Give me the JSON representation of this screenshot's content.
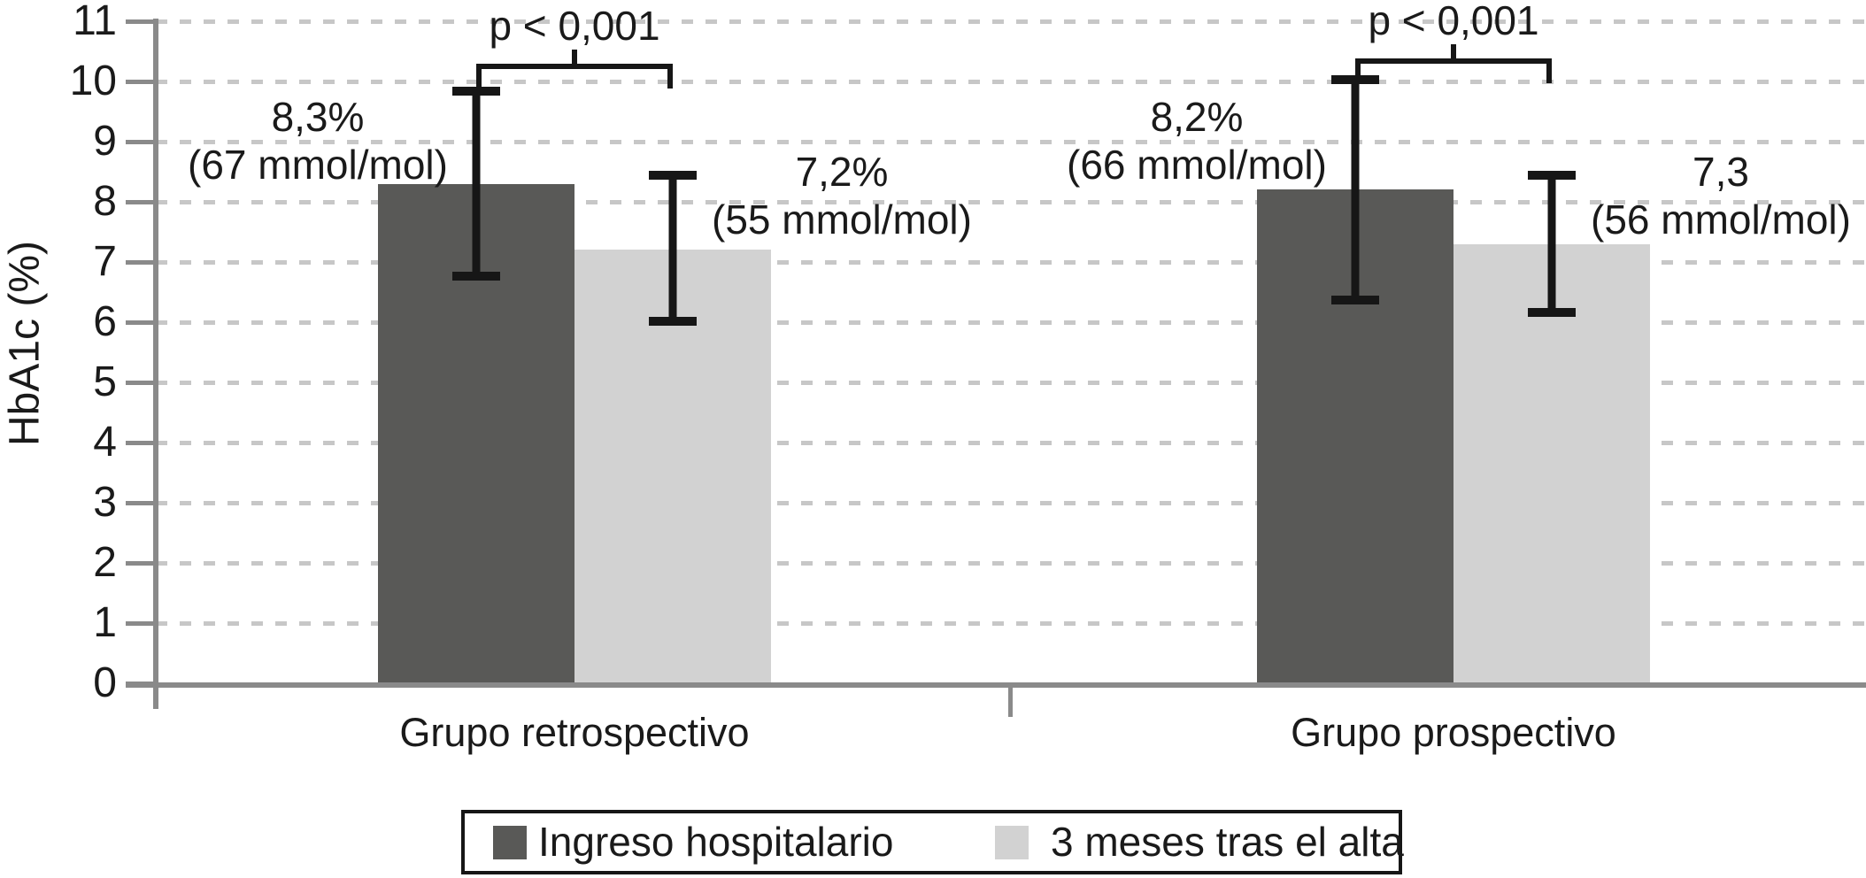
{
  "chart_data": {
    "type": "bar",
    "title": "",
    "ylabel": "HbA1c (%)",
    "xlabel": "",
    "ylim": [
      0,
      11
    ],
    "yticks": [
      0,
      1,
      2,
      3,
      4,
      5,
      6,
      7,
      8,
      9,
      10,
      11
    ],
    "grid": "horizontal-dashed",
    "legend_position": "bottom",
    "categories": [
      "Grupo retrospectivo",
      "Grupo prospectivo"
    ],
    "series": [
      {
        "name": "Ingreso hospitalario",
        "color": "#595957",
        "values": [
          8.3,
          8.2
        ],
        "error_ranges": [
          [
            6.75,
            9.85
          ],
          [
            6.35,
            10.05
          ]
        ]
      },
      {
        "name": "3 meses tras el alta",
        "color": "#d2d2d2",
        "values": [
          7.2,
          7.3
        ],
        "error_ranges": [
          [
            6.0,
            8.45
          ],
          [
            6.15,
            8.45
          ]
        ]
      }
    ],
    "bar_labels": [
      {
        "group": 0,
        "series": 0,
        "lines": [
          "8,3%",
          "(67 mmol/mol)"
        ]
      },
      {
        "group": 0,
        "series": 1,
        "lines": [
          "7,2%",
          "(55 mmol/mol)"
        ]
      },
      {
        "group": 1,
        "series": 0,
        "lines": [
          "8,2%",
          "(66 mmol/mol)"
        ]
      },
      {
        "group": 1,
        "series": 1,
        "lines": [
          "7,3",
          "(56 mmol/mol)"
        ]
      }
    ],
    "significance": [
      {
        "group": 0,
        "label": "p < 0,001"
      },
      {
        "group": 1,
        "label": "p < 0,001"
      }
    ]
  },
  "colors": {
    "axis": "#8a8a8a",
    "grid": "#c7c7c7",
    "text": "#1a1a1a",
    "error_bar": "#161616",
    "background": "#ffffff"
  }
}
